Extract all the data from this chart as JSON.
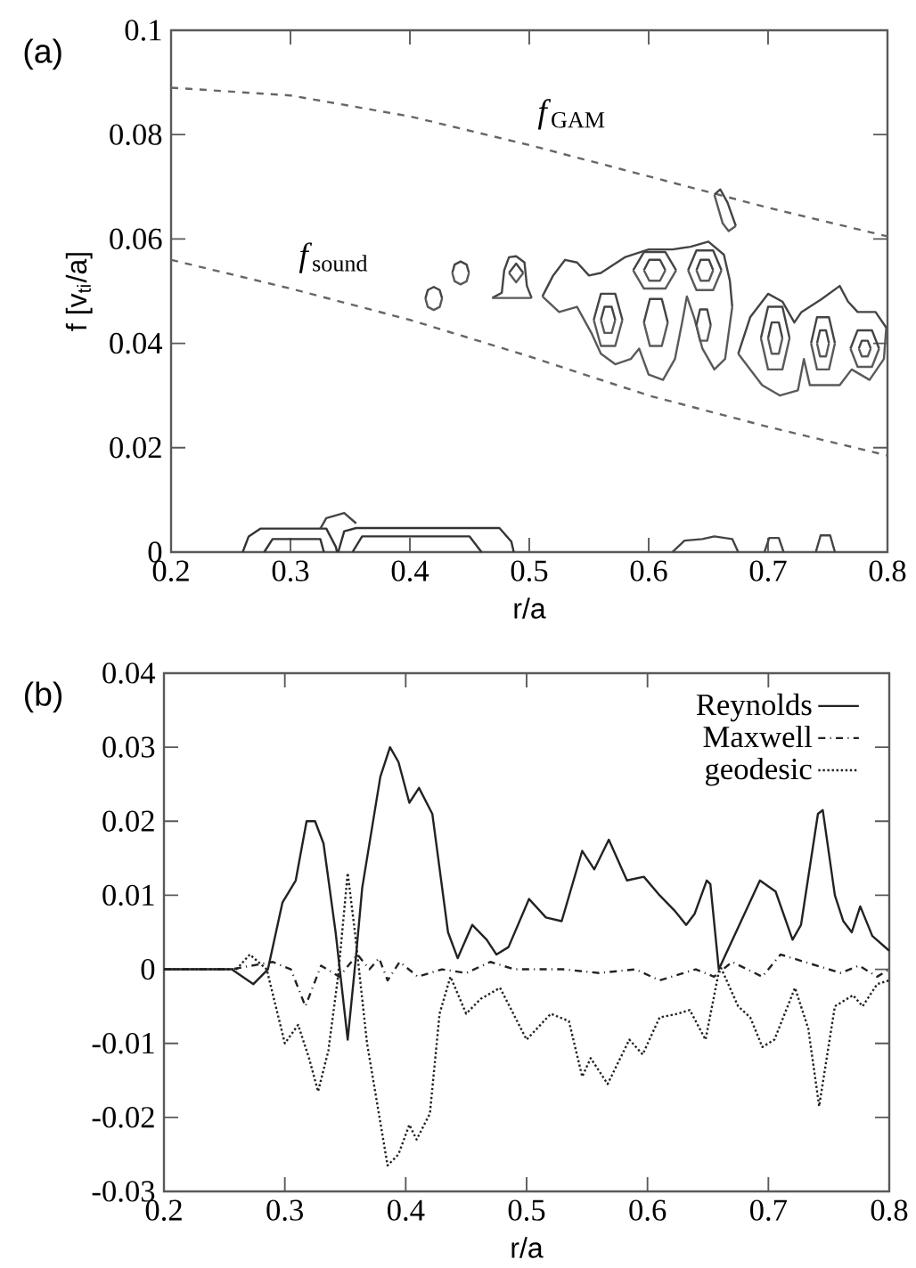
{
  "chart_data": [
    {
      "type": "line",
      "ylabel": "f [v$_{ti}$/a]",
      "xlabel": "r/a",
      "xlim": [
        0.2,
        0.8
      ],
      "ylim": [
        0,
        0.1
      ],
      "xticks": [
        0.2,
        0.3,
        0.4,
        0.5,
        0.6,
        0.7,
        0.8
      ],
      "yticks": [
        0,
        0.02,
        0.04,
        0.06,
        0.08,
        0.1
      ],
      "annotations": [
        "(a)",
        {
          "text": "*f*$_{GAM}$",
          "x": 0.5,
          "y": 0.078
        },
        {
          "text": "*f*$_{sound}$",
          "x": 0.3,
          "y": 0.0505
        }
      ],
      "series": [
        {
          "color": "#666666",
          "line_style": "dashed",
          "x": [
            0.2,
            0.3,
            0.4,
            0.5,
            0.6,
            0.7,
            0.8
          ],
          "values": [
            0.089,
            0.0875,
            0.0835,
            0.078,
            0.072,
            0.066,
            0.0605
          ]
        },
        {
          "color": "#666666",
          "line_style": "dashed",
          "x": [
            0.2,
            0.3,
            0.4,
            0.5,
            0.6,
            0.7,
            0.8
          ],
          "values": [
            0.056,
            0.0505,
            0.0445,
            0.0375,
            0.03,
            0.024,
            0.0185
          ]
        },
        {
          "color": "#444444",
          "line_style": "solid",
          "x": [
            0.413,
            0.415,
            0.42,
            0.425,
            0.427
          ],
          "values": [
            0.0486,
            0.0502,
            0.0508,
            0.0502,
            0.0486
          ]
        },
        {
          "color": "#5a5a5a",
          "line_style": "solid",
          "x": [
            0.413,
            0.415,
            0.42,
            0.425,
            0.427
          ],
          "values": [
            0.0486,
            0.047,
            0.0464,
            0.047,
            0.0486
          ]
        },
        {
          "color": "#444444",
          "line_style": "solid",
          "x": [
            0.4355,
            0.4375,
            0.4425,
            0.4475,
            0.4495
          ],
          "values": [
            0.0535,
            0.0551,
            0.0557,
            0.0551,
            0.0535
          ]
        },
        {
          "color": "#5a5a5a",
          "line_style": "solid",
          "x": [
            0.4355,
            0.4375,
            0.4425,
            0.4475,
            0.4495
          ],
          "values": [
            0.0535,
            0.0519,
            0.0513,
            0.0519,
            0.0535
          ]
        },
        {
          "color": "#444444",
          "line_style": "solid",
          "x": [
            0.469,
            0.477,
            0.479,
            0.483,
            0.489,
            0.496,
            0.498,
            0.502
          ],
          "values": [
            0.0487,
            0.0497,
            0.054,
            0.0565,
            0.0567,
            0.0555,
            0.051,
            0.0487
          ]
        },
        {
          "color": "#5a5a5a",
          "line_style": "solid",
          "x": [
            0.469,
            0.502
          ],
          "values": [
            0.0487,
            0.0487
          ]
        },
        {
          "color": "#444444",
          "line_style": "solid",
          "x": [
            0.483,
            0.489,
            0.495
          ],
          "values": [
            0.0535,
            0.0553,
            0.0535
          ]
        },
        {
          "color": "#5a5a5a",
          "line_style": "solid",
          "x": [
            0.483,
            0.489,
            0.495
          ],
          "values": [
            0.0535,
            0.0517,
            0.0535
          ]
        },
        {
          "color": "#444444",
          "line_style": "solid",
          "x": [
            0.511,
            0.52,
            0.53,
            0.54,
            0.55,
            0.56,
            0.58,
            0.6,
            0.62,
            0.635,
            0.65,
            0.663,
            0.668,
            0.67
          ],
          "values": [
            0.049,
            0.053,
            0.056,
            0.0555,
            0.053,
            0.0535,
            0.0565,
            0.058,
            0.058,
            0.0585,
            0.0595,
            0.057,
            0.052,
            0.047
          ]
        },
        {
          "color": "#5a5a5a",
          "line_style": "solid",
          "x": [
            0.511,
            0.525,
            0.54,
            0.552,
            0.56,
            0.572,
            0.585,
            0.592,
            0.6,
            0.612,
            0.622,
            0.628,
            0.632,
            0.638,
            0.645,
            0.655,
            0.664,
            0.67
          ],
          "values": [
            0.049,
            0.046,
            0.047,
            0.042,
            0.038,
            0.036,
            0.037,
            0.039,
            0.034,
            0.033,
            0.037,
            0.044,
            0.049,
            0.045,
            0.039,
            0.035,
            0.037,
            0.047
          ]
        },
        {
          "color": "#444444",
          "line_style": "solid",
          "x": [
            0.587,
            0.596,
            0.614,
            0.623
          ],
          "values": [
            0.054,
            0.0575,
            0.0575,
            0.054
          ]
        },
        {
          "color": "#5a5a5a",
          "line_style": "solid",
          "x": [
            0.587,
            0.596,
            0.614,
            0.623
          ],
          "values": [
            0.054,
            0.0505,
            0.0505,
            0.054
          ]
        },
        {
          "color": "#444444",
          "line_style": "solid",
          "x": [
            0.596,
            0.6005,
            0.6095,
            0.614
          ],
          "values": [
            0.054,
            0.056,
            0.056,
            0.054
          ]
        },
        {
          "color": "#5a5a5a",
          "line_style": "solid",
          "x": [
            0.596,
            0.6005,
            0.6095,
            0.614
          ],
          "values": [
            0.054,
            0.052,
            0.052,
            0.054
          ]
        },
        {
          "color": "#444444",
          "line_style": "solid",
          "x": [
            0.633,
            0.64,
            0.654,
            0.661
          ],
          "values": [
            0.054,
            0.0578,
            0.0578,
            0.054
          ]
        },
        {
          "color": "#5a5a5a",
          "line_style": "solid",
          "x": [
            0.633,
            0.64,
            0.654,
            0.661
          ],
          "values": [
            0.054,
            0.0502,
            0.0502,
            0.054
          ]
        },
        {
          "color": "#444444",
          "line_style": "solid",
          "x": [
            0.64,
            0.6435,
            0.6505,
            0.654
          ],
          "values": [
            0.054,
            0.056,
            0.056,
            0.054
          ]
        },
        {
          "color": "#5a5a5a",
          "line_style": "solid",
          "x": [
            0.64,
            0.6435,
            0.6505,
            0.654
          ],
          "values": [
            0.054,
            0.052,
            0.052,
            0.054
          ]
        },
        {
          "color": "#444444",
          "line_style": "solid",
          "x": [
            0.554,
            0.56,
            0.572,
            0.578
          ],
          "values": [
            0.0445,
            0.0495,
            0.0495,
            0.0445
          ]
        },
        {
          "color": "#5a5a5a",
          "line_style": "solid",
          "x": [
            0.554,
            0.56,
            0.572,
            0.578
          ],
          "values": [
            0.0445,
            0.0395,
            0.0395,
            0.0445
          ]
        },
        {
          "color": "#444444",
          "line_style": "solid",
          "x": [
            0.56,
            0.563,
            0.569,
            0.572
          ],
          "values": [
            0.0445,
            0.047,
            0.047,
            0.0445
          ]
        },
        {
          "color": "#5a5a5a",
          "line_style": "solid",
          "x": [
            0.56,
            0.563,
            0.569,
            0.572
          ],
          "values": [
            0.0445,
            0.042,
            0.042,
            0.0445
          ]
        },
        {
          "color": "#444444",
          "line_style": "solid",
          "x": [
            0.596,
            0.601,
            0.611,
            0.616
          ],
          "values": [
            0.044,
            0.0485,
            0.0485,
            0.044
          ]
        },
        {
          "color": "#5a5a5a",
          "line_style": "solid",
          "x": [
            0.596,
            0.601,
            0.611,
            0.616
          ],
          "values": [
            0.044,
            0.0395,
            0.0395,
            0.044
          ]
        },
        {
          "color": "#444444",
          "line_style": "solid",
          "x": [
            0.64,
            0.643,
            0.649,
            0.652
          ],
          "values": [
            0.0435,
            0.0465,
            0.0465,
            0.0435
          ]
        },
        {
          "color": "#5a5a5a",
          "line_style": "solid",
          "x": [
            0.64,
            0.643,
            0.649,
            0.652
          ],
          "values": [
            0.0435,
            0.0405,
            0.0405,
            0.0435
          ]
        },
        {
          "color": "#444444",
          "line_style": "solid",
          "x": [
            0.675,
            0.685,
            0.7,
            0.712,
            0.722,
            0.728,
            0.745,
            0.76,
            0.767,
            0.775,
            0.79,
            0.799
          ],
          "values": [
            0.038,
            0.045,
            0.0495,
            0.048,
            0.044,
            0.046,
            0.0485,
            0.051,
            0.048,
            0.046,
            0.046,
            0.043
          ]
        },
        {
          "color": "#5a5a5a",
          "line_style": "solid",
          "x": [
            0.675,
            0.695,
            0.71,
            0.725,
            0.73,
            0.735,
            0.76,
            0.77,
            0.785,
            0.797,
            0.799
          ],
          "values": [
            0.038,
            0.032,
            0.03,
            0.031,
            0.037,
            0.032,
            0.032,
            0.035,
            0.033,
            0.037,
            0.043
          ]
        },
        {
          "color": "#444444",
          "line_style": "solid",
          "x": [
            0.694,
            0.7,
            0.712,
            0.718
          ],
          "values": [
            0.041,
            0.047,
            0.047,
            0.041
          ]
        },
        {
          "color": "#5a5a5a",
          "line_style": "solid",
          "x": [
            0.694,
            0.7,
            0.712,
            0.718
          ],
          "values": [
            0.041,
            0.035,
            0.035,
            0.041
          ]
        },
        {
          "color": "#444444",
          "line_style": "solid",
          "x": [
            0.7,
            0.703,
            0.709,
            0.712
          ],
          "values": [
            0.041,
            0.044,
            0.044,
            0.041
          ]
        },
        {
          "color": "#5a5a5a",
          "line_style": "solid",
          "x": [
            0.7,
            0.703,
            0.709,
            0.712
          ],
          "values": [
            0.041,
            0.038,
            0.038,
            0.041
          ]
        },
        {
          "color": "#444444",
          "line_style": "solid",
          "x": [
            0.736,
            0.741,
            0.751,
            0.756
          ],
          "values": [
            0.04,
            0.045,
            0.045,
            0.04
          ]
        },
        {
          "color": "#5a5a5a",
          "line_style": "solid",
          "x": [
            0.736,
            0.741,
            0.751,
            0.756
          ],
          "values": [
            0.04,
            0.035,
            0.035,
            0.04
          ]
        },
        {
          "color": "#444444",
          "line_style": "solid",
          "x": [
            0.741,
            0.7435,
            0.7485,
            0.751
          ],
          "values": [
            0.04,
            0.0425,
            0.0425,
            0.04
          ]
        },
        {
          "color": "#5a5a5a",
          "line_style": "solid",
          "x": [
            0.741,
            0.7435,
            0.7485,
            0.751
          ],
          "values": [
            0.04,
            0.0375,
            0.0375,
            0.04
          ]
        },
        {
          "color": "#444444",
          "line_style": "solid",
          "x": [
            0.769,
            0.775,
            0.787,
            0.793
          ],
          "values": [
            0.039,
            0.0425,
            0.0425,
            0.039
          ]
        },
        {
          "color": "#5a5a5a",
          "line_style": "solid",
          "x": [
            0.769,
            0.775,
            0.787,
            0.793
          ],
          "values": [
            0.039,
            0.0355,
            0.0355,
            0.039
          ]
        },
        {
          "color": "#444444",
          "line_style": "solid",
          "x": [
            0.776,
            0.7785,
            0.7835,
            0.786
          ],
          "values": [
            0.039,
            0.0405,
            0.0405,
            0.039
          ]
        },
        {
          "color": "#5a5a5a",
          "line_style": "solid",
          "x": [
            0.776,
            0.7785,
            0.7835,
            0.786
          ],
          "values": [
            0.039,
            0.0375,
            0.0375,
            0.039
          ]
        },
        {
          "color": "#444444",
          "line_style": "solid",
          "x": [
            0.655,
            0.66,
            0.666,
            0.673
          ],
          "values": [
            0.0685,
            0.0695,
            0.067,
            0.0625
          ]
        },
        {
          "color": "#5a5a5a",
          "line_style": "solid",
          "x": [
            0.655,
            0.662,
            0.667,
            0.673
          ],
          "values": [
            0.0685,
            0.063,
            0.0615,
            0.0625
          ]
        },
        {
          "color": "#333333",
          "line_style": "solid",
          "x": [
            0.26,
            0.265,
            0.275,
            0.33,
            0.338,
            0.339
          ],
          "values": [
            0,
            0.003,
            0.0045,
            0.0045,
            0.001,
            0
          ]
        },
        {
          "color": "#333333",
          "line_style": "solid",
          "x": [
            0.278,
            0.285,
            0.325,
            0.328
          ],
          "values": [
            0,
            0.0025,
            0.0025,
            0
          ]
        },
        {
          "color": "#333333",
          "line_style": "solid",
          "x": [
            0.34,
            0.345,
            0.355,
            0.475,
            0.485,
            0.487
          ],
          "values": [
            0,
            0.004,
            0.0046,
            0.0046,
            0.002,
            0
          ]
        },
        {
          "color": "#333333",
          "line_style": "solid",
          "x": [
            0.352,
            0.36,
            0.45,
            0.46
          ],
          "values": [
            0,
            0.003,
            0.003,
            0
          ]
        },
        {
          "color": "#444444",
          "line_style": "solid",
          "x": [
            0.325,
            0.33,
            0.345,
            0.355
          ],
          "values": [
            0.0045,
            0.0065,
            0.0075,
            0.0055
          ]
        },
        {
          "color": "#444444",
          "line_style": "solid",
          "x": [
            0.62,
            0.63,
            0.645,
            0.655,
            0.67,
            0.675
          ],
          "values": [
            0,
            0.0022,
            0.0025,
            0.003,
            0.0025,
            0
          ]
        },
        {
          "color": "#444444",
          "line_style": "solid",
          "x": [
            0.697,
            0.701,
            0.709,
            0.713
          ],
          "values": [
            0,
            0.0027,
            0.0027,
            0
          ]
        },
        {
          "color": "#444444",
          "line_style": "solid",
          "x": [
            0.74,
            0.744,
            0.752,
            0.756
          ],
          "values": [
            0,
            0.0032,
            0.0032,
            0
          ]
        }
      ]
    },
    {
      "type": "line",
      "xlabel": "r/a",
      "xlim": [
        0.2,
        0.8
      ],
      "ylim": [
        -0.03,
        0.04
      ],
      "xticks": [
        0.2,
        0.3,
        0.4,
        0.5,
        0.6,
        0.7,
        0.8
      ],
      "yticks": [
        -0.03,
        -0.02,
        -0.01,
        0,
        0.01,
        0.02,
        0.03,
        0.04
      ],
      "legend": "top right",
      "annotations": [
        "(b)"
      ],
      "series": [
        {
          "name": "Reynolds",
          "color": "#222222",
          "line_style": "solid",
          "x": [
            0.2,
            0.256,
            0.274,
            0.286,
            0.298,
            0.309,
            0.318,
            0.325,
            0.332,
            0.342,
            0.352,
            0.359,
            0.364,
            0.379,
            0.387,
            0.394,
            0.403,
            0.411,
            0.422,
            0.435,
            0.443,
            0.455,
            0.467,
            0.475,
            0.485,
            0.502,
            0.516,
            0.529,
            0.546,
            0.556,
            0.568,
            0.583,
            0.597,
            0.61,
            0.622,
            0.632,
            0.639,
            0.649,
            0.652,
            0.659,
            0.676,
            0.693,
            0.706,
            0.72,
            0.727,
            0.741,
            0.745,
            0.755,
            0.762,
            0.769,
            0.776,
            0.786,
            0.8
          ],
          "values": [
            0,
            0,
            -0.002,
            0,
            0.009,
            0.012,
            0.02,
            0.02,
            0.017,
            0.005,
            -0.0095,
            0.002,
            0.011,
            0.026,
            0.03,
            0.028,
            0.0225,
            0.0245,
            0.021,
            0.005,
            0.0015,
            0.006,
            0.004,
            0.002,
            0.003,
            0.0095,
            0.007,
            0.0065,
            0.016,
            0.0135,
            0.0175,
            0.012,
            0.0125,
            0.01,
            0.008,
            0.006,
            0.0075,
            0.012,
            0.0115,
            0,
            0.006,
            0.012,
            0.0105,
            0.004,
            0.006,
            0.021,
            0.0215,
            0.01,
            0.0065,
            0.005,
            0.0085,
            0.0045,
            0.0025
          ]
        },
        {
          "name": "Maxwell",
          "color": "#222222",
          "line_style": "dashdot",
          "x": [
            0.2,
            0.256,
            0.29,
            0.305,
            0.317,
            0.33,
            0.345,
            0.36,
            0.37,
            0.378,
            0.385,
            0.395,
            0.41,
            0.43,
            0.45,
            0.47,
            0.49,
            0.53,
            0.56,
            0.59,
            0.61,
            0.64,
            0.655,
            0.67,
            0.695,
            0.71,
            0.73,
            0.76,
            0.775,
            0.79,
            0.8
          ],
          "values": [
            0,
            0,
            0.001,
            0,
            -0.005,
            0.0005,
            -0.001,
            0.002,
            0,
            0.0015,
            -0.0015,
            0.001,
            -0.001,
            0,
            -0.0005,
            0.001,
            0,
            0,
            -0.0005,
            0,
            -0.0015,
            0,
            -0.001,
            0.001,
            -0.001,
            0.002,
            0.001,
            -0.0005,
            0.0005,
            -0.001,
            0
          ]
        },
        {
          "name": "geodesic",
          "color": "#222222",
          "line_style": "dotted",
          "x": [
            0.2,
            0.26,
            0.271,
            0.285,
            0.3,
            0.311,
            0.32,
            0.3275,
            0.336,
            0.344,
            0.352,
            0.358,
            0.368,
            0.385,
            0.394,
            0.403,
            0.409,
            0.42,
            0.428,
            0.437,
            0.45,
            0.462,
            0.478,
            0.5,
            0.52,
            0.535,
            0.546,
            0.553,
            0.567,
            0.585,
            0.596,
            0.61,
            0.625,
            0.635,
            0.648,
            0.66,
            0.675,
            0.685,
            0.695,
            0.705,
            0.722,
            0.733,
            0.742,
            0.755,
            0.77,
            0.778,
            0.79,
            0.8
          ],
          "values": [
            0,
            0,
            0.002,
            0,
            -0.01,
            -0.0075,
            -0.012,
            -0.0165,
            -0.011,
            -0.001,
            0.013,
            0.005,
            -0.01,
            -0.0265,
            -0.025,
            -0.021,
            -0.023,
            -0.0195,
            -0.006,
            -0.001,
            -0.006,
            -0.004,
            -0.0025,
            -0.0095,
            -0.006,
            -0.007,
            -0.0145,
            -0.012,
            -0.0155,
            -0.0095,
            -0.0115,
            -0.0065,
            -0.006,
            -0.0055,
            -0.0095,
            0.0005,
            -0.005,
            -0.0065,
            -0.0105,
            -0.0095,
            -0.0025,
            -0.008,
            -0.0185,
            -0.005,
            -0.0035,
            -0.005,
            -0.002,
            -0.0015
          ]
        }
      ]
    }
  ]
}
